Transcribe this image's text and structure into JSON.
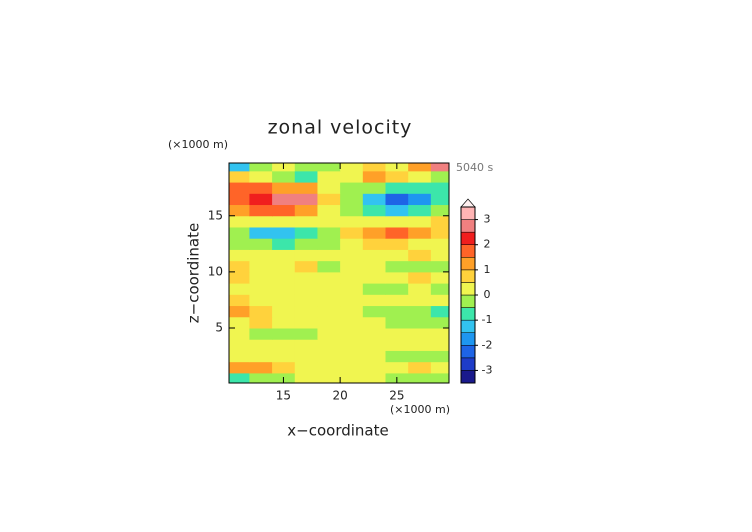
{
  "chart_data": {
    "type": "heatmap",
    "title": "zonal velocity",
    "x_unit": "(×1000 m)",
    "y_unit": "(×1000 m)",
    "time_label": "5040 s",
    "xlabel": "x−coordinate",
    "ylabel": "z−coordinate",
    "x": [
      11,
      13,
      15,
      17,
      19,
      21,
      23,
      25,
      27,
      29
    ],
    "y": [
      0.5,
      1.5,
      2.5,
      3.5,
      4.5,
      5.5,
      6.5,
      7.5,
      8.5,
      9.5,
      10.5,
      11.5,
      12.5,
      13.5,
      14.5,
      15.5,
      16.5,
      17.5,
      18.5,
      19.5
    ],
    "z": [
      [
        -1,
        -0.5,
        -0.5,
        0,
        0,
        0,
        0,
        -0.3,
        -0.5,
        -0.5
      ],
      [
        1,
        1,
        0.5,
        0.3,
        0,
        0,
        0,
        0.3,
        0.5,
        0.3
      ],
      [
        0.3,
        0.3,
        0.3,
        0.3,
        0,
        0,
        0,
        -0.3,
        -0.5,
        -0.5
      ],
      [
        0,
        0,
        0,
        0,
        0,
        0,
        0.3,
        0.3,
        0,
        0
      ],
      [
        0,
        -0.3,
        -0.5,
        -0.3,
        0,
        0,
        0,
        0,
        0,
        0.3
      ],
      [
        0.3,
        0.5,
        0.3,
        0,
        0,
        0,
        0,
        -0.3,
        -0.3,
        -0.5
      ],
      [
        1,
        0.5,
        0.3,
        0,
        0,
        0,
        -0.5,
        -0.5,
        -0.5,
        -1
      ],
      [
        0.5,
        0.3,
        0.3,
        0,
        0,
        0,
        0,
        0,
        0.3,
        0
      ],
      [
        0.3,
        0,
        0,
        0,
        0,
        0,
        -0.3,
        -0.3,
        0,
        -0.3
      ],
      [
        0.5,
        0.3,
        0,
        0,
        0.3,
        0,
        0,
        0,
        0.5,
        0.3
      ],
      [
        0.5,
        0.3,
        0.3,
        0.5,
        -0.3,
        0.3,
        0,
        -0.3,
        -0.5,
        -0.5
      ],
      [
        0,
        0,
        0,
        0,
        0,
        0,
        0,
        0,
        0.5,
        0.3
      ],
      [
        -0.3,
        -0.5,
        -1,
        -0.5,
        -0.3,
        0.3,
        0.5,
        0.5,
        0.3,
        0.3
      ],
      [
        -0.5,
        -1.5,
        -1.5,
        -1,
        -0.5,
        0.5,
        1,
        1.5,
        1,
        0.5
      ],
      [
        0,
        0,
        0,
        0,
        0,
        0,
        0,
        0,
        0,
        0.5
      ],
      [
        1,
        1.5,
        1.5,
        1,
        0.3,
        -0.3,
        -1,
        -1.5,
        -1,
        -0.5
      ],
      [
        1.5,
        2,
        2.5,
        2.5,
        0.8,
        -0.5,
        -1.5,
        -2.5,
        -2,
        -1
      ],
      [
        1.5,
        1.5,
        1,
        1,
        0.3,
        -0.3,
        -0.5,
        -1,
        -1,
        -1
      ],
      [
        0.5,
        0,
        -0.5,
        -1,
        0,
        0,
        1,
        0.5,
        0,
        -0.5
      ],
      [
        -1.5,
        -0.5,
        0,
        -0.5,
        -0.3,
        0.3,
        0.5,
        0,
        1,
        2.5
      ]
    ],
    "xlim": [
      10.2,
      29.6
    ],
    "xticks": [
      15,
      20,
      25
    ],
    "ylim": [
      0.1,
      19.7
    ],
    "yticks": [
      5,
      10,
      15
    ],
    "levels": [
      -3.5,
      -3,
      -2.5,
      -2,
      -1.5,
      -1,
      -0.5,
      0,
      0.5,
      1,
      1.5,
      2,
      2.5,
      3,
      3.5
    ],
    "colors": [
      "#1a1a8c",
      "#1e3cc8",
      "#1e64e6",
      "#1e96f0",
      "#32c3f0",
      "#3ce6aa",
      "#a0f050",
      "#f0f550",
      "#ffd23c",
      "#ffa028",
      "#ff6428",
      "#f01e1e",
      "#f08080",
      "#ffb4b4"
    ],
    "extend_color": "#fff0f0",
    "cbar_ticks": [
      -3,
      -2,
      -1,
      0,
      1,
      2,
      3
    ]
  }
}
